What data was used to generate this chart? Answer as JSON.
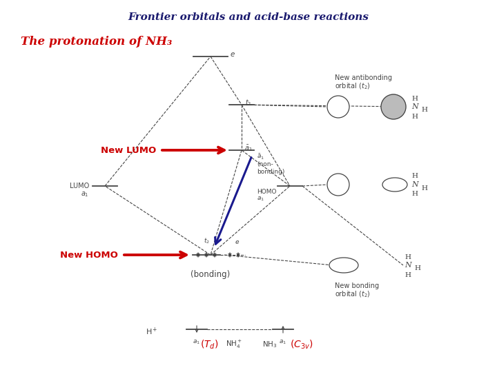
{
  "title": "Frontier orbitals and acid-base reactions",
  "subtitle": "The protonation of NH₃",
  "title_color": "#1a1a6e",
  "subtitle_color": "#CC0000",
  "bg_color": "#FFFFFF",
  "arrow_color_red": "#CC0000",
  "arrow_color_blue": "#1a1a8e",
  "diagram_color": "#444444",
  "label_new_lumo": "New LUMO",
  "label_new_homo": "New HOMO",
  "label_nonbonding": "(non-\nbonding)",
  "label_bonding": "(bonding)",
  "label_new_antibonding": "New antibonding\norbital (t₂)",
  "label_new_bonding": "New bonding\norbital (t₂)"
}
